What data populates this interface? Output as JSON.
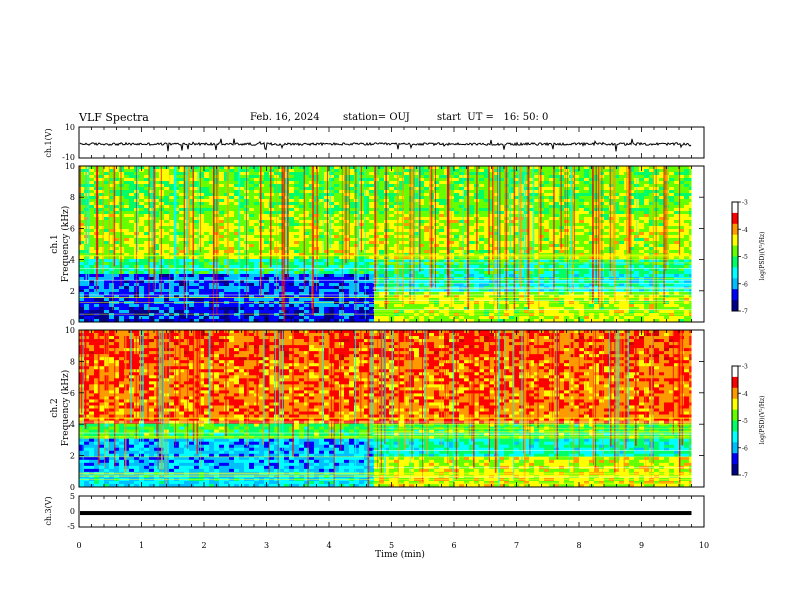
{
  "header": {
    "title": "VLF Spectra",
    "date": "Feb. 16, 2024",
    "station": "station= OUJ",
    "start": "start  UT =   16: 50: 0"
  },
  "chart_data": [
    {
      "type": "line",
      "panel": "ch1-waveform",
      "ylabel": "ch.1(V)",
      "ylim": [
        -10,
        10
      ],
      "ytick_labels": [
        "10",
        "-10"
      ],
      "baseline": -1,
      "xlim": [
        0,
        10
      ]
    },
    {
      "type": "heatmap",
      "panel": "ch1-spectrogram",
      "ylabel": "ch.1\nFrequency (kHz)",
      "ylabel_lines": [
        "ch.1",
        "Frequency (kHz)"
      ],
      "ylim": [
        0,
        10
      ],
      "ytick_labels": [
        "0",
        "2",
        "4",
        "6",
        "8",
        "10"
      ],
      "xlim": [
        0,
        10
      ],
      "colorbar": {
        "label": "log(PSD)(V²/Hz)",
        "range": [
          -7,
          -3
        ],
        "tick_labels": [
          "-3",
          "-4",
          "-5",
          "-6",
          "-7"
        ]
      }
    },
    {
      "type": "heatmap",
      "panel": "ch2-spectrogram",
      "ylabel": "ch.2\nFrequency (kHz)",
      "ylabel_lines": [
        "ch.2",
        "Frequency (kHz)"
      ],
      "ylim": [
        0,
        10
      ],
      "ytick_labels": [
        "0",
        "2",
        "4",
        "6",
        "8",
        "10"
      ],
      "xlim": [
        0,
        10
      ],
      "colorbar": {
        "label": "log(PSD)(V²/Hz)",
        "range": [
          -7,
          -3
        ],
        "tick_labels": [
          "-3",
          "-4",
          "-5",
          "-6",
          "-7"
        ]
      }
    },
    {
      "type": "line",
      "panel": "ch3-waveform",
      "ylabel": "ch.3(V)",
      "ylim": [
        -5,
        5
      ],
      "ytick_labels": [
        "5",
        "0",
        "-5"
      ],
      "baseline": -0.5,
      "xlim": [
        0,
        10
      ],
      "xlabel": "Time (min)",
      "xtick_labels": [
        "0",
        "1",
        "2",
        "3",
        "4",
        "5",
        "6",
        "7",
        "8",
        "9",
        "10"
      ],
      "data_end_x": 9.8
    }
  ],
  "colors": {
    "ink": "#000000",
    "colormap": [
      "#00008b",
      "#0000ff",
      "#00bfff",
      "#00ffff",
      "#00ff66",
      "#66ff00",
      "#ffff00",
      "#ff9900",
      "#ff0000",
      "#cc0000",
      "#ffffff"
    ]
  }
}
